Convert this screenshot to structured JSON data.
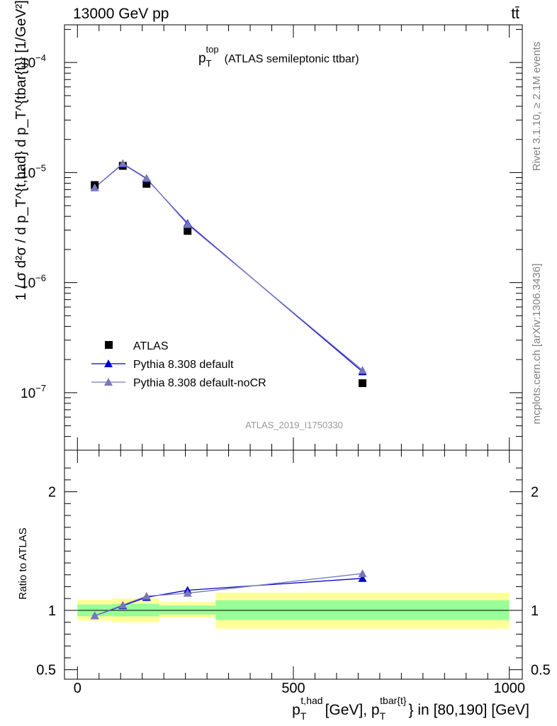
{
  "header": {
    "energy_label": "13000 GeV pp",
    "process_label": "tt̄"
  },
  "side_labels": {
    "rivet": "Rivet 3.1.10, ≥ 2.1M events",
    "mcplots": "mcplots.cern.ch [arXiv:1306.3436]"
  },
  "chart_data": [
    {
      "type": "line",
      "panel": "main",
      "title": {
        "main": "p",
        "sub": "T",
        "sup": "top",
        "rest": "(ATLAS semileptonic ttbar)"
      },
      "analysis_id": "ATLAS_2019_I1750330",
      "ylabel": "1 / σ d²σ / d p_T^{t,had} d p_T^{tbar{t}} [1/GeV²]",
      "yscale": "log",
      "xlim": [
        -30,
        1030
      ],
      "ylim": [
        3e-08,
        0.00022
      ],
      "yticks": [
        {
          "value": 1e-07,
          "base": "10",
          "exp": "−7"
        },
        {
          "value": 1e-06,
          "base": "10",
          "exp": "−6"
        },
        {
          "value": 1e-05,
          "base": "10",
          "exp": "−5"
        },
        {
          "value": 0.0001,
          "base": "10",
          "exp": "−4"
        }
      ],
      "legend_placement": "lower-left",
      "series": [
        {
          "name": "ATLAS",
          "style": "data",
          "color": "#000000",
          "x": [
            40,
            105,
            160,
            255,
            660
          ],
          "y": [
            7.7e-06,
            1.15e-05,
            7.9e-06,
            2.95e-06,
            1.22e-07
          ]
        },
        {
          "name": "Pythia 8.308 default",
          "style": "line",
          "color": "#0000cc",
          "x": [
            40,
            105,
            160,
            255,
            660
          ],
          "y": [
            7.3e-06,
            1.2e-05,
            8.8e-06,
            3.45e-06,
            1.55e-07
          ]
        },
        {
          "name": "Pythia 8.308 default-noCR",
          "style": "line",
          "color": "#7777bb",
          "x": [
            40,
            105,
            160,
            255,
            660
          ],
          "y": [
            7.3e-06,
            1.21e-05,
            8.9e-06,
            3.38e-06,
            1.6e-07
          ]
        }
      ]
    },
    {
      "type": "line",
      "panel": "ratio",
      "ylabel": "Ratio to ATLAS",
      "xlabel": {
        "p1": "p",
        "sub1": "T",
        "sup1": "t,had",
        "mid": "[GeV], p",
        "sub2": "T",
        "sup2": "tbar{t}",
        "rest": "} in [80,190] [GeV]"
      },
      "xlim": [
        -30,
        1030
      ],
      "ylim": [
        0.42,
        2.35
      ],
      "xticks": [
        {
          "value": 0,
          "label": "0"
        },
        {
          "value": 500,
          "label": "500"
        },
        {
          "value": 1000,
          "label": "1000"
        }
      ],
      "yticks": [
        {
          "value": 0.5,
          "label": "0.5"
        },
        {
          "value": 1,
          "label": "1"
        },
        {
          "value": 2,
          "label": "2"
        }
      ],
      "bins": [
        {
          "lo": 0,
          "hi": 80,
          "stat_lo": 0.95,
          "stat_hi": 1.05,
          "tot_lo": 0.915,
          "tot_hi": 1.09
        },
        {
          "lo": 80,
          "hi": 190,
          "stat_lo": 0.95,
          "stat_hi": 1.055,
          "tot_lo": 0.9,
          "tot_hi": 1.1
        },
        {
          "lo": 190,
          "hi": 320,
          "stat_lo": 0.965,
          "stat_hi": 1.04,
          "tot_lo": 0.94,
          "tot_hi": 1.07
        },
        {
          "lo": 320,
          "hi": 1000,
          "stat_lo": 0.92,
          "stat_hi": 1.085,
          "tot_lo": 0.845,
          "tot_hi": 1.15
        }
      ],
      "series": [
        {
          "name": "Pythia 8.308 default",
          "color": "#0000cc",
          "x": [
            40,
            105,
            160,
            255,
            660
          ],
          "y": [
            0.955,
            1.04,
            1.11,
            1.17,
            1.27
          ]
        },
        {
          "name": "Pythia 8.308 default-noCR",
          "color": "#7777bb",
          "x": [
            40,
            105,
            160,
            255,
            660
          ],
          "y": [
            0.955,
            1.045,
            1.12,
            1.145,
            1.31
          ]
        }
      ]
    }
  ],
  "colors": {
    "band_total": "#ffff99",
    "band_stat": "#99ff99"
  }
}
